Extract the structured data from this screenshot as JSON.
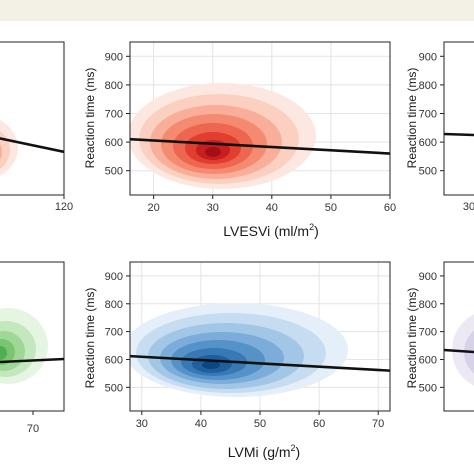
{
  "colors": {
    "header_band": "#f3f1e6",
    "gridline": "#e3e3e3",
    "axis": "#222222",
    "regression_line": "#111111",
    "red_palette": [
      "#fde8e1",
      "#fbd0c0",
      "#f8ae98",
      "#f48a70",
      "#ee6650",
      "#e23e30",
      "#c81e1e",
      "#a30f15"
    ],
    "blue_palette": [
      "#e4eff9",
      "#c6dcf0",
      "#a2c6e6",
      "#7cacd9",
      "#5592c8",
      "#3878b5",
      "#1f5fa0",
      "#0c4584"
    ],
    "green_palette": [
      "#e6f5e2",
      "#c4e8bd",
      "#9fd796",
      "#79c570",
      "#4fae52"
    ],
    "purple_palette": [
      "#ece9f4",
      "#d7d2ea"
    ]
  },
  "chart_data": [
    {
      "id": "top-left-partial",
      "type": "density-contour",
      "palette": "red",
      "xlabel": "",
      "ylabel": "",
      "x_ticks": [
        "120"
      ],
      "y_ticks": [],
      "xlim": [
        0,
        120
      ],
      "ylim": [
        400,
        950
      ],
      "regression": {
        "x": [
          0,
          120
        ],
        "y": [
          605,
          555
        ]
      },
      "density_center": {
        "x": -20,
        "y": 550
      }
    },
    {
      "id": "top-center",
      "type": "density-contour",
      "palette": "red",
      "xlabel": "LVESVi (ml/m",
      "xlabel_sup": "2",
      "xlabel_tail": ")",
      "ylabel": "Reaction time (ms)",
      "x_ticks": [
        "20",
        "30",
        "40",
        "50",
        "60"
      ],
      "x_tick_values": [
        20,
        30,
        40,
        50,
        60
      ],
      "y_ticks": [
        "500",
        "600",
        "700",
        "800",
        "900"
      ],
      "y_tick_values": [
        500,
        600,
        700,
        800,
        900
      ],
      "xlim": [
        16,
        60
      ],
      "ylim": [
        415,
        950
      ],
      "grid": true,
      "regression": {
        "x": [
          16,
          60
        ],
        "y": [
          610,
          560
        ]
      },
      "density_center": {
        "x": 30,
        "y": 545
      }
    },
    {
      "id": "top-right-partial",
      "type": "density-contour",
      "palette": "none",
      "xlabel": "",
      "ylabel": "Reaction time (ms)",
      "x_ticks": [
        "30"
      ],
      "y_ticks": [
        "500",
        "600",
        "700",
        "800",
        "900"
      ],
      "y_tick_values": [
        500,
        600,
        700,
        800,
        900
      ],
      "ylim": [
        415,
        950
      ],
      "regression": {
        "y_start": 612
      }
    },
    {
      "id": "bottom-left-partial",
      "type": "density-contour",
      "palette": "green",
      "xlabel": "",
      "ylabel": "",
      "x_ticks": [
        "70"
      ],
      "y_ticks": [],
      "ylim": [
        400,
        950
      ],
      "regression": {
        "y_start": 575,
        "y_end": 590
      },
      "density_center": {
        "y": 560
      }
    },
    {
      "id": "bottom-center",
      "type": "density-contour",
      "palette": "blue",
      "xlabel": "LVMi (g/m",
      "xlabel_sup": "2",
      "xlabel_tail": ")",
      "ylabel": "Reaction time (ms)",
      "x_ticks": [
        "30",
        "40",
        "50",
        "60",
        "70"
      ],
      "x_tick_values": [
        30,
        40,
        50,
        60,
        70
      ],
      "y_ticks": [
        "500",
        "600",
        "700",
        "800",
        "900"
      ],
      "y_tick_values": [
        500,
        600,
        700,
        800,
        900
      ],
      "xlim": [
        28,
        72
      ],
      "ylim": [
        415,
        950
      ],
      "grid": true,
      "regression": {
        "x": [
          28,
          72
        ],
        "y": [
          612,
          560
        ]
      },
      "density_center": {
        "x": 42,
        "y": 555
      }
    },
    {
      "id": "bottom-right-partial",
      "type": "density-contour",
      "palette": "purple",
      "xlabel": "",
      "ylabel": "Reaction time (ms)",
      "x_ticks": [],
      "y_ticks": [
        "500",
        "600",
        "700",
        "800",
        "900"
      ],
      "y_tick_values": [
        500,
        600,
        700,
        800,
        900
      ],
      "ylim": [
        415,
        950
      ],
      "regression": {
        "y_start": 620
      }
    }
  ]
}
